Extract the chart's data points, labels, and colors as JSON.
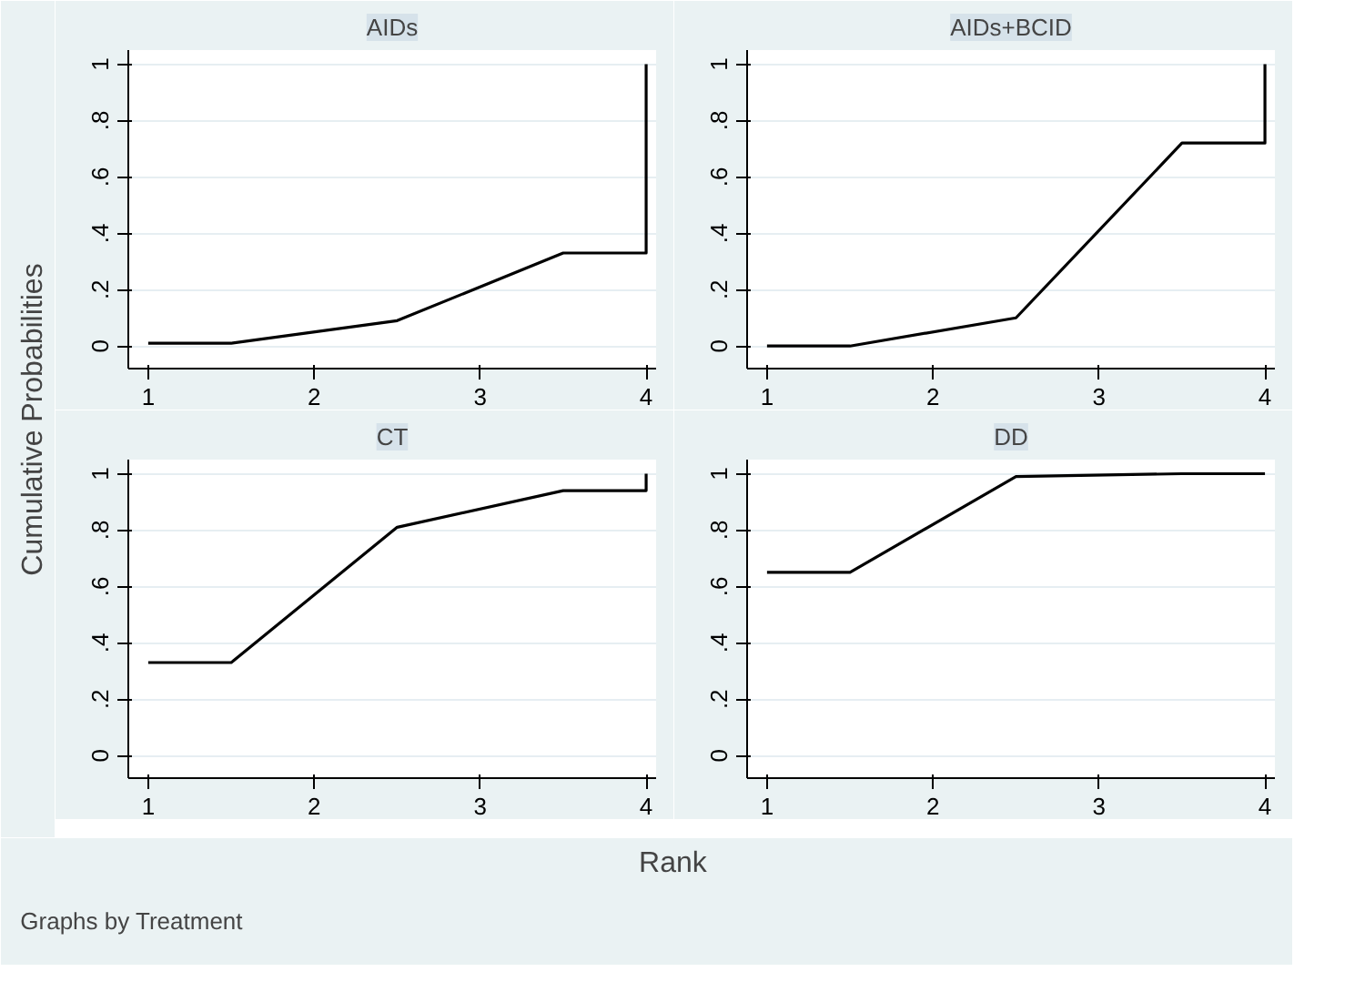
{
  "chart_data": [
    {
      "type": "line",
      "title": "AIDs",
      "ylabel": "Cumulative Probabilities",
      "xlabel": "Rank",
      "annotations": [
        "Graphs by Treatment"
      ],
      "x": [
        1,
        1.5,
        2.5,
        3.5,
        4,
        4
      ],
      "series": [
        {
          "color": "#000000",
          "values": [
            0.01,
            0.01,
            0.09,
            0.33,
            0.33,
            1
          ]
        }
      ],
      "xlim": [
        0.88,
        4.06
      ],
      "ylim": [
        -0.08,
        1.05
      ],
      "xticks": [
        1,
        2,
        3,
        4
      ],
      "yticks": [
        0,
        {
          "value": 0.2,
          "label": ".2"
        },
        {
          "value": 0.4,
          "label": ".4"
        },
        {
          "value": 0.6,
          "label": ".6"
        },
        {
          "value": 0.8,
          "label": ".8"
        },
        1
      ],
      "grid": "y"
    },
    {
      "type": "line",
      "title": "AIDs+BCID",
      "x": [
        1,
        1.5,
        2.5,
        3.5,
        4,
        4
      ],
      "series": [
        {
          "color": "#000000",
          "values": [
            0,
            0,
            0.1,
            0.72,
            0.72,
            1
          ]
        }
      ],
      "xlim": [
        0.88,
        4.06
      ],
      "ylim": [
        -0.08,
        1.05
      ],
      "xticks": [
        1,
        2,
        3,
        4
      ],
      "yticks": [
        0,
        {
          "value": 0.2,
          "label": ".2"
        },
        {
          "value": 0.4,
          "label": ".4"
        },
        {
          "value": 0.6,
          "label": ".6"
        },
        {
          "value": 0.8,
          "label": ".8"
        },
        1
      ],
      "grid": "y"
    },
    {
      "type": "line",
      "title": "CT",
      "x": [
        1,
        1.5,
        2.5,
        3.5,
        4,
        4
      ],
      "series": [
        {
          "color": "#000000",
          "values": [
            0.33,
            0.33,
            0.81,
            0.94,
            0.94,
            1
          ]
        }
      ],
      "xlim": [
        0.88,
        4.06
      ],
      "ylim": [
        -0.08,
        1.05
      ],
      "xticks": [
        1,
        2,
        3,
        4
      ],
      "yticks": [
        0,
        {
          "value": 0.2,
          "label": ".2"
        },
        {
          "value": 0.4,
          "label": ".4"
        },
        {
          "value": 0.6,
          "label": ".6"
        },
        {
          "value": 0.8,
          "label": ".8"
        },
        1
      ],
      "grid": "y"
    },
    {
      "type": "line",
      "title": "DD",
      "x": [
        1,
        1.5,
        2.5,
        3.5,
        4,
        4
      ],
      "series": [
        {
          "color": "#000000",
          "values": [
            0.65,
            0.65,
            0.99,
            1,
            1,
            1
          ]
        }
      ],
      "xlim": [
        0.88,
        4.06
      ],
      "ylim": [
        -0.08,
        1.05
      ],
      "xticks": [
        1,
        2,
        3,
        4
      ],
      "yticks": [
        0,
        {
          "value": 0.2,
          "label": ".2"
        },
        {
          "value": 0.4,
          "label": ".4"
        },
        {
          "value": 0.6,
          "label": ".6"
        },
        {
          "value": 0.8,
          "label": ".8"
        },
        1
      ],
      "grid": "y"
    }
  ]
}
